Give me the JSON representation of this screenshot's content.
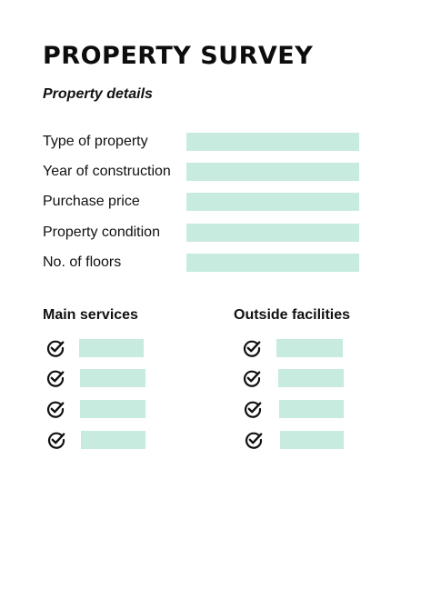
{
  "title": "PROPERTY SURVEY",
  "section_property_details": "Property details",
  "property_details": [
    {
      "label": "Type of property",
      "value": ""
    },
    {
      "label": "Year of construction",
      "value": ""
    },
    {
      "label": "Purchase price",
      "value": ""
    },
    {
      "label": "Property condition",
      "value": ""
    },
    {
      "label": "No. of floors",
      "value": ""
    }
  ],
  "main_services": {
    "heading": "Main services",
    "items": [
      {
        "checked": true,
        "value": ""
      },
      {
        "checked": true,
        "value": ""
      },
      {
        "checked": true,
        "value": ""
      },
      {
        "checked": true,
        "value": ""
      }
    ]
  },
  "outside_facilities": {
    "heading": "Outside facilities",
    "items": [
      {
        "checked": true,
        "value": ""
      },
      {
        "checked": true,
        "value": ""
      },
      {
        "checked": true,
        "value": ""
      },
      {
        "checked": true,
        "value": ""
      }
    ]
  },
  "colors": {
    "field_fill": "#c7ebde",
    "text": "#111111",
    "background": "#ffffff"
  },
  "icons": {
    "check": "check-circle-icon"
  }
}
